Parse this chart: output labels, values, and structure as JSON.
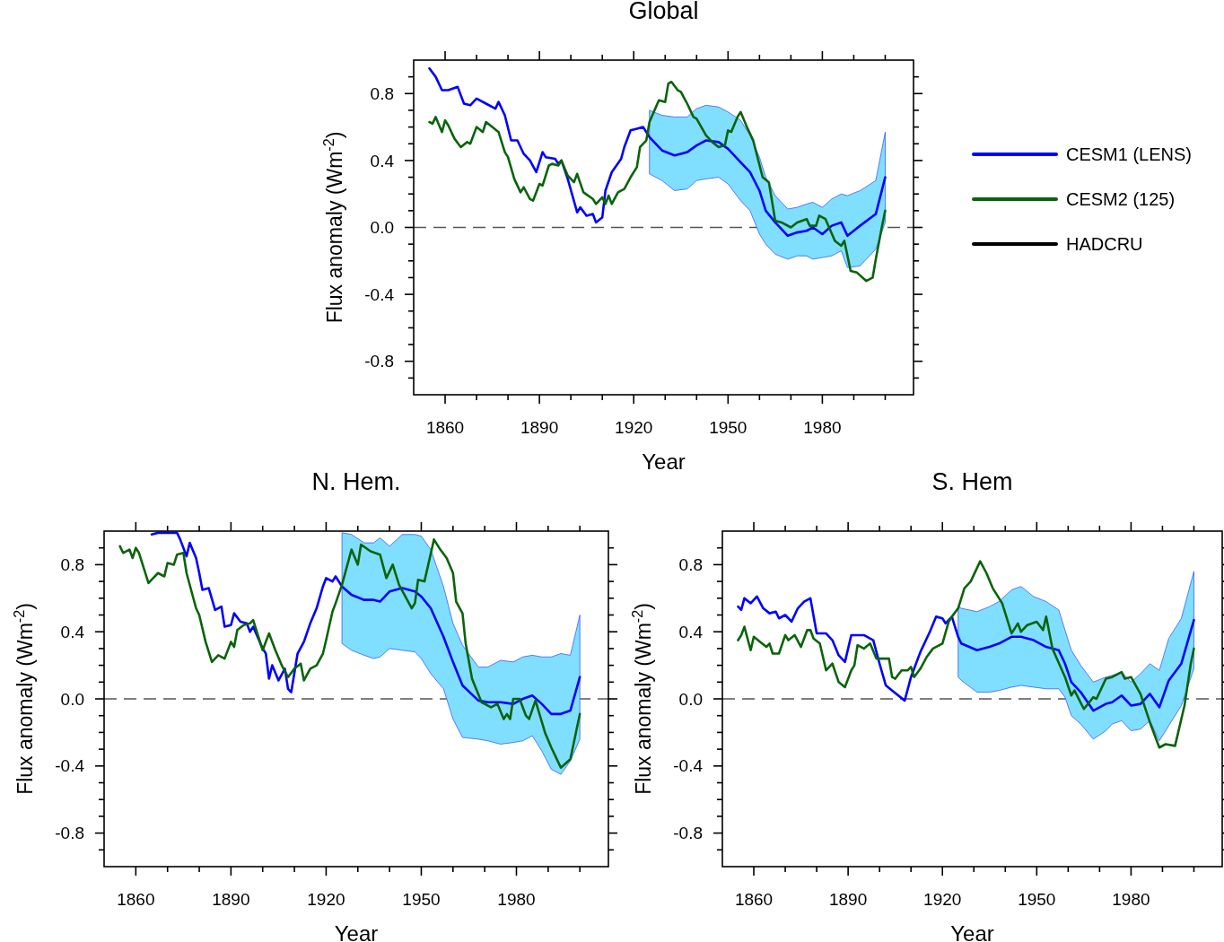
{
  "chart_data": [
    {
      "type": "line",
      "title": "Global",
      "xlabel": "Year",
      "ylabel": "Flux anomaly (Wm$^{-2}$)",
      "xlim": [
        1850,
        2009
      ],
      "ylim": [
        -1,
        1
      ],
      "xticks": [
        1860,
        {
          "value": 1870,
          "label": null
        },
        {
          "value": 1880,
          "label": null
        },
        1890,
        {
          "value": 1900,
          "label": null
        },
        {
          "value": 1910,
          "label": null
        },
        1920,
        {
          "value": 1930,
          "label": null
        },
        {
          "value": 1940,
          "label": null
        },
        1950,
        {
          "value": 1960,
          "label": null
        },
        {
          "value": 1970,
          "label": null
        },
        1980,
        {
          "value": 1990,
          "label": null
        },
        {
          "value": 2000,
          "label": null
        }
      ],
      "yticks": [
        -0.8,
        {
          "value": -0.9,
          "label": null
        },
        {
          "value": -0.7,
          "label": null
        },
        {
          "value": -0.6,
          "label": null
        },
        {
          "value": -0.5,
          "label": null
        },
        -0.4,
        {
          "value": -0.3,
          "label": null
        },
        {
          "value": -0.2,
          "label": null
        },
        {
          "value": -0.1,
          "label": null
        },
        {
          "value": 0,
          "label": "0.0"
        },
        {
          "value": 0.1,
          "label": null
        },
        {
          "value": 0.2,
          "label": null
        },
        {
          "value": 0.3,
          "label": null
        },
        0.4,
        {
          "value": 0.5,
          "label": null
        },
        {
          "value": 0.6,
          "label": null
        },
        {
          "value": 0.7,
          "label": null
        },
        0.8,
        {
          "value": 0.9,
          "label": null
        }
      ],
      "legend": "right",
      "ref_lines": [
        {
          "axis": "y",
          "value": 0,
          "color": "#555555",
          "line_style": "dashed"
        }
      ],
      "series": [
        {
          "name": "CESM1 (LENS)",
          "color": "#0000ff",
          "x": [
            1855,
            1857,
            1859,
            1861,
            1864,
            1866,
            1868,
            1870,
            1873,
            1876,
            1877,
            1879,
            1881,
            1883,
            1885,
            1887,
            1889,
            1891,
            1892,
            1895,
            1896,
            1897,
            1899,
            1902,
            1903,
            1905,
            1907,
            1908,
            1910,
            1911,
            1913,
            1916,
            1917,
            1919,
            1921,
            1923,
            1925,
            1929,
            1933,
            1937,
            1940,
            1943,
            1947,
            1950,
            1954,
            1957,
            1960,
            1962,
            1965,
            1969,
            1972,
            1975,
            1977,
            1980,
            1983,
            1986,
            1988,
            1992,
            1997,
            2000
          ],
          "values": [
            0.95,
            0.9,
            0.82,
            0.82,
            0.84,
            0.74,
            0.73,
            0.77,
            0.74,
            0.71,
            0.75,
            0.67,
            0.52,
            0.52,
            0.44,
            0.4,
            0.33,
            0.45,
            0.42,
            0.41,
            0.38,
            0.4,
            0.29,
            0.09,
            0.12,
            0.07,
            0.08,
            0.03,
            0.06,
            0.22,
            0.33,
            0.41,
            0.48,
            0.58,
            0.59,
            0.6,
            0.54,
            0.46,
            0.43,
            0.45,
            0.49,
            0.52,
            0.51,
            0.47,
            0.39,
            0.33,
            0.22,
            0.1,
            0.03,
            -0.05,
            -0.03,
            -0.02,
            0.0,
            -0.04,
            0.01,
            0.03,
            -0.05,
            0.01,
            0.08,
            0.3
          ],
          "upper": [
            null,
            null,
            null,
            null,
            null,
            null,
            null,
            null,
            null,
            null,
            null,
            null,
            null,
            null,
            null,
            null,
            null,
            null,
            null,
            null,
            null,
            null,
            null,
            null,
            null,
            null,
            null,
            null,
            null,
            null,
            null,
            null,
            null,
            null,
            null,
            null,
            0.7,
            0.67,
            0.66,
            0.66,
            0.71,
            0.73,
            0.72,
            0.69,
            0.64,
            0.55,
            0.42,
            0.3,
            0.19,
            0.11,
            0.12,
            0.14,
            0.15,
            0.12,
            0.17,
            0.2,
            0.19,
            0.22,
            0.28,
            0.57
          ],
          "lower": [
            null,
            null,
            null,
            null,
            null,
            null,
            null,
            null,
            null,
            null,
            null,
            null,
            null,
            null,
            null,
            null,
            null,
            null,
            null,
            null,
            null,
            null,
            null,
            null,
            null,
            null,
            null,
            null,
            null,
            null,
            null,
            null,
            null,
            null,
            null,
            null,
            0.32,
            0.28,
            0.22,
            0.23,
            0.28,
            0.29,
            0.3,
            0.26,
            0.16,
            0.1,
            -0.04,
            -0.1,
            -0.16,
            -0.19,
            -0.17,
            -0.17,
            -0.19,
            -0.18,
            -0.17,
            -0.14,
            -0.24,
            -0.23,
            -0.13,
            0.03
          ]
        },
        {
          "name": "CESM2 (125)",
          "color": "#0a640a",
          "x": [
            1855,
            1856,
            1857,
            1859,
            1860,
            1861,
            1863,
            1865,
            1867,
            1868,
            1870,
            1872,
            1873,
            1875,
            1877,
            1879,
            1880,
            1882,
            1884,
            1885,
            1887,
            1888,
            1890,
            1891,
            1893,
            1894,
            1896,
            1897,
            1899,
            1901,
            1902,
            1904,
            1907,
            1908,
            1910,
            1911,
            1912,
            1913,
            1915,
            1917,
            1919,
            1921,
            1922,
            1924,
            1925,
            1928,
            1930,
            1931,
            1932,
            1934,
            1935,
            1937,
            1939,
            1940,
            1943,
            1945,
            1947,
            1949,
            1950,
            1951,
            1953,
            1954,
            1956,
            1958,
            1961,
            1963,
            1965,
            1967,
            1970,
            1972,
            1975,
            1976,
            1978,
            1979,
            1981,
            1984,
            1986,
            1987,
            1989,
            1991,
            1994,
            1996,
            1997,
            1999,
            2000
          ],
          "values": [
            0.63,
            0.62,
            0.66,
            0.57,
            0.64,
            0.61,
            0.53,
            0.48,
            0.51,
            0.5,
            0.6,
            0.57,
            0.63,
            0.6,
            0.57,
            0.45,
            0.42,
            0.29,
            0.21,
            0.24,
            0.17,
            0.16,
            0.26,
            0.25,
            0.37,
            0.38,
            0.37,
            0.4,
            0.31,
            0.27,
            0.32,
            0.21,
            0.17,
            0.14,
            0.18,
            0.14,
            0.19,
            0.14,
            0.21,
            0.23,
            0.3,
            0.36,
            0.48,
            0.52,
            0.63,
            0.76,
            0.75,
            0.86,
            0.87,
            0.82,
            0.81,
            0.74,
            0.66,
            0.65,
            0.55,
            0.51,
            0.48,
            0.49,
            0.58,
            0.57,
            0.66,
            0.69,
            0.6,
            0.52,
            0.3,
            0.27,
            0.04,
            0.03,
            0.0,
            0.03,
            0.05,
            0.01,
            0.01,
            0.07,
            0.05,
            -0.08,
            -0.11,
            -0.08,
            -0.26,
            -0.27,
            -0.32,
            -0.3,
            -0.19,
            0.01,
            0.1
          ]
        },
        {
          "name": "HADCRU",
          "color": "#000000"
        }
      ]
    },
    {
      "type": "line",
      "title": "N. Hem.",
      "xlabel": "Year",
      "ylabel": "Flux anomaly (Wm$^{-2}$)",
      "xlim": [
        1850,
        2009
      ],
      "ylim": [
        -1,
        1
      ],
      "xticks": [
        1860,
        {
          "value": 1870,
          "label": null
        },
        {
          "value": 1880,
          "label": null
        },
        1890,
        {
          "value": 1900,
          "label": null
        },
        {
          "value": 1910,
          "label": null
        },
        1920,
        {
          "value": 1930,
          "label": null
        },
        {
          "value": 1940,
          "label": null
        },
        1950,
        {
          "value": 1960,
          "label": null
        },
        {
          "value": 1970,
          "label": null
        },
        1980,
        {
          "value": 1990,
          "label": null
        },
        {
          "value": 2000,
          "label": null
        }
      ],
      "yticks": [
        -0.8,
        {
          "value": -0.9,
          "label": null
        },
        {
          "value": -0.7,
          "label": null
        },
        {
          "value": -0.6,
          "label": null
        },
        {
          "value": -0.5,
          "label": null
        },
        -0.4,
        {
          "value": -0.3,
          "label": null
        },
        {
          "value": -0.2,
          "label": null
        },
        {
          "value": -0.1,
          "label": null
        },
        {
          "value": 0,
          "label": "0.0"
        },
        {
          "value": 0.1,
          "label": null
        },
        {
          "value": 0.2,
          "label": null
        },
        {
          "value": 0.3,
          "label": null
        },
        0.4,
        {
          "value": 0.5,
          "label": null
        },
        {
          "value": 0.6,
          "label": null
        },
        {
          "value": 0.7,
          "label": null
        },
        0.8,
        {
          "value": 0.9,
          "label": null
        }
      ],
      "ref_lines": [
        {
          "axis": "y",
          "value": 0,
          "color": "#555555",
          "line_style": "dashed"
        }
      ],
      "series": [
        {
          "color": "#0000ff",
          "x": [
            1865,
            1867,
            1873,
            1874,
            1876,
            1877,
            1879,
            1880,
            1881,
            1883,
            1885,
            1887,
            1888,
            1890,
            1891,
            1893,
            1895,
            1896,
            1897,
            1900,
            1901,
            1902,
            1903,
            1905,
            1907,
            1908,
            1909,
            1911,
            1913,
            1915,
            1917,
            1919,
            1920,
            1922,
            1923,
            1925,
            1928,
            1932,
            1935,
            1937,
            1940,
            1944,
            1948,
            1950,
            1953,
            1957,
            1960,
            1963,
            1968,
            1971,
            1975,
            1979,
            1982,
            1985,
            1988,
            1991,
            1994,
            1997,
            2000
          ],
          "values": [
            0.98,
            0.99,
            0.99,
            0.95,
            0.85,
            0.93,
            0.84,
            0.75,
            0.65,
            0.66,
            0.53,
            0.55,
            0.43,
            0.44,
            0.51,
            0.46,
            0.45,
            0.4,
            0.43,
            0.3,
            0.27,
            0.12,
            0.2,
            0.11,
            0.18,
            0.06,
            0.04,
            0.27,
            0.34,
            0.45,
            0.54,
            0.67,
            0.72,
            0.7,
            0.73,
            0.67,
            0.62,
            0.59,
            0.59,
            0.58,
            0.64,
            0.66,
            0.64,
            0.61,
            0.54,
            0.37,
            0.22,
            0.08,
            -0.01,
            -0.02,
            -0.02,
            -0.03,
            0.0,
            0.02,
            -0.03,
            -0.09,
            -0.09,
            -0.07,
            0.13
          ],
          "upper": [
            null,
            null,
            null,
            null,
            null,
            null,
            null,
            null,
            null,
            null,
            null,
            null,
            null,
            null,
            null,
            null,
            null,
            null,
            null,
            null,
            null,
            null,
            null,
            null,
            null,
            null,
            null,
            null,
            null,
            null,
            null,
            null,
            null,
            null,
            null,
            0.99,
            0.98,
            0.93,
            0.93,
            0.96,
            0.91,
            0.98,
            0.98,
            0.97,
            0.89,
            0.67,
            0.45,
            0.32,
            0.19,
            0.19,
            0.23,
            0.22,
            0.25,
            0.26,
            0.25,
            0.25,
            0.27,
            0.26,
            0.5
          ],
          "lower": [
            null,
            null,
            null,
            null,
            null,
            null,
            null,
            null,
            null,
            null,
            null,
            null,
            null,
            null,
            null,
            null,
            null,
            null,
            null,
            null,
            null,
            null,
            null,
            null,
            null,
            null,
            null,
            null,
            null,
            null,
            null,
            null,
            null,
            null,
            null,
            0.33,
            0.29,
            0.26,
            0.24,
            0.25,
            0.3,
            0.29,
            0.28,
            0.24,
            0.15,
            0.06,
            -0.12,
            -0.23,
            -0.24,
            -0.25,
            -0.27,
            -0.26,
            -0.25,
            -0.22,
            -0.31,
            -0.42,
            -0.45,
            -0.37,
            -0.24
          ]
        },
        {
          "color": "#0a640a",
          "x": [
            1855,
            1856,
            1858,
            1859,
            1860,
            1861,
            1864,
            1865,
            1867,
            1869,
            1870,
            1872,
            1873,
            1875,
            1876,
            1879,
            1880,
            1882,
            1884,
            1886,
            1888,
            1890,
            1891,
            1892,
            1894,
            1896,
            1897,
            1900,
            1902,
            1904,
            1906,
            1908,
            1910,
            1912,
            1913,
            1915,
            1917,
            1919,
            1920,
            1922,
            1923,
            1925,
            1928,
            1930,
            1931,
            1934,
            1937,
            1939,
            1941,
            1943,
            1947,
            1948,
            1949,
            1951,
            1954,
            1956,
            1958,
            1960,
            1961,
            1963,
            1964,
            1966,
            1969,
            1972,
            1974,
            1976,
            1977,
            1978,
            1979,
            1981,
            1983,
            1984,
            1986,
            1989,
            1991,
            1994,
            1997,
            2000
          ],
          "values": [
            0.91,
            0.87,
            0.89,
            0.84,
            0.9,
            0.87,
            0.69,
            0.71,
            0.75,
            0.73,
            0.81,
            0.8,
            0.86,
            0.87,
            0.75,
            0.54,
            0.5,
            0.34,
            0.22,
            0.26,
            0.24,
            0.34,
            0.31,
            0.41,
            0.44,
            0.45,
            0.47,
            0.29,
            0.39,
            0.29,
            0.2,
            0.13,
            0.18,
            0.21,
            0.11,
            0.18,
            0.2,
            0.27,
            0.35,
            0.52,
            0.57,
            0.68,
            0.89,
            0.8,
            0.92,
            0.88,
            0.86,
            0.72,
            0.8,
            0.68,
            0.54,
            0.57,
            0.71,
            0.7,
            0.95,
            0.89,
            0.84,
            0.75,
            0.58,
            0.51,
            0.33,
            0.12,
            -0.02,
            -0.05,
            -0.03,
            -0.12,
            -0.09,
            -0.12,
            0.0,
            0.0,
            -0.1,
            -0.12,
            -0.01,
            -0.2,
            -0.29,
            -0.41,
            -0.36,
            -0.09
          ]
        }
      ]
    },
    {
      "type": "line",
      "title": "S. Hem",
      "xlabel": "Year",
      "ylabel": "Flux anomaly (Wm$^{-2}$)",
      "xlim": [
        1850,
        2009
      ],
      "ylim": [
        -1,
        1
      ],
      "xticks": [
        1860,
        {
          "value": 1870,
          "label": null
        },
        {
          "value": 1880,
          "label": null
        },
        1890,
        {
          "value": 1900,
          "label": null
        },
        {
          "value": 1910,
          "label": null
        },
        1920,
        {
          "value": 1930,
          "label": null
        },
        {
          "value": 1940,
          "label": null
        },
        1950,
        {
          "value": 1960,
          "label": null
        },
        {
          "value": 1970,
          "label": null
        },
        1980,
        {
          "value": 1990,
          "label": null
        },
        {
          "value": 2000,
          "label": null
        }
      ],
      "yticks": [
        -0.8,
        {
          "value": -0.9,
          "label": null
        },
        {
          "value": -0.7,
          "label": null
        },
        {
          "value": -0.6,
          "label": null
        },
        {
          "value": -0.5,
          "label": null
        },
        -0.4,
        {
          "value": -0.3,
          "label": null
        },
        {
          "value": -0.2,
          "label": null
        },
        {
          "value": -0.1,
          "label": null
        },
        {
          "value": 0,
          "label": "0.0"
        },
        {
          "value": 0.1,
          "label": null
        },
        {
          "value": 0.2,
          "label": null
        },
        {
          "value": 0.3,
          "label": null
        },
        0.4,
        {
          "value": 0.5,
          "label": null
        },
        {
          "value": 0.6,
          "label": null
        },
        {
          "value": 0.7,
          "label": null
        },
        0.8,
        {
          "value": 0.9,
          "label": null
        }
      ],
      "ref_lines": [
        {
          "axis": "y",
          "value": 0,
          "color": "#555555",
          "line_style": "dashed"
        }
      ],
      "series": [
        {
          "color": "#0000ff",
          "x": [
            1855,
            1856,
            1857,
            1859,
            1861,
            1863,
            1865,
            1867,
            1868,
            1870,
            1872,
            1874,
            1876,
            1878,
            1880,
            1883,
            1885,
            1887,
            1889,
            1891,
            1895,
            1898,
            1900,
            1902,
            1904,
            1908,
            1910,
            1913,
            1916,
            1918,
            1920,
            1921,
            1923,
            1925,
            1926,
            1931,
            1935,
            1938,
            1942,
            1945,
            1949,
            1953,
            1957,
            1959,
            1961,
            1964,
            1968,
            1972,
            1974,
            1977,
            1980,
            1983,
            1986,
            1989,
            1992,
            1996,
            2000
          ],
          "values": [
            0.55,
            0.53,
            0.6,
            0.57,
            0.61,
            0.54,
            0.51,
            0.52,
            0.48,
            0.5,
            0.46,
            0.54,
            0.58,
            0.6,
            0.39,
            0.39,
            0.35,
            0.26,
            0.22,
            0.38,
            0.38,
            0.35,
            0.21,
            0.08,
            0.05,
            -0.01,
            0.13,
            0.28,
            0.4,
            0.49,
            0.48,
            0.45,
            0.49,
            0.37,
            0.33,
            0.29,
            0.31,
            0.33,
            0.37,
            0.37,
            0.35,
            0.31,
            0.29,
            0.21,
            0.1,
            0.04,
            -0.07,
            -0.03,
            -0.02,
            0.02,
            -0.04,
            -0.03,
            0.03,
            -0.05,
            0.11,
            0.21,
            0.47
          ],
          "upper": [
            null,
            null,
            null,
            null,
            null,
            null,
            null,
            null,
            null,
            null,
            null,
            null,
            null,
            null,
            null,
            null,
            null,
            null,
            null,
            null,
            null,
            null,
            null,
            null,
            null,
            null,
            null,
            null,
            null,
            null,
            null,
            null,
            null,
            0.55,
            0.54,
            0.52,
            0.55,
            0.58,
            0.65,
            0.67,
            0.61,
            0.58,
            0.53,
            0.41,
            0.29,
            0.2,
            0.1,
            0.13,
            0.14,
            0.16,
            0.1,
            0.15,
            0.21,
            0.17,
            0.36,
            0.48,
            0.76
          ],
          "lower": [
            null,
            null,
            null,
            null,
            null,
            null,
            null,
            null,
            null,
            null,
            null,
            null,
            null,
            null,
            null,
            null,
            null,
            null,
            null,
            null,
            null,
            null,
            null,
            null,
            null,
            null,
            null,
            null,
            null,
            null,
            null,
            null,
            null,
            0.13,
            0.11,
            0.04,
            0.04,
            0.05,
            0.07,
            0.08,
            0.07,
            0.06,
            0.06,
            0.01,
            -0.1,
            -0.15,
            -0.24,
            -0.19,
            -0.15,
            -0.13,
            -0.19,
            -0.18,
            -0.13,
            -0.25,
            -0.16,
            -0.04,
            0.18
          ]
        },
        {
          "color": "#0a640a",
          "x": [
            1855,
            1856,
            1857,
            1859,
            1860,
            1862,
            1864,
            1865,
            1866,
            1868,
            1870,
            1871,
            1873,
            1875,
            1877,
            1878,
            1879,
            1881,
            1883,
            1885,
            1887,
            1889,
            1891,
            1892,
            1893,
            1895,
            1897,
            1899,
            1903,
            1904,
            1905,
            1907,
            1909,
            1910,
            1911,
            1913,
            1915,
            1917,
            1920,
            1922,
            1923,
            1925,
            1927,
            1929,
            1931,
            1932,
            1934,
            1936,
            1939,
            1942,
            1944,
            1945,
            1947,
            1950,
            1952,
            1953,
            1955,
            1959,
            1961,
            1962,
            1965,
            1968,
            1969,
            1972,
            1974,
            1977,
            1978,
            1980,
            1983,
            1986,
            1989,
            1991,
            1994,
            1995,
            1997,
            1999,
            2000
          ],
          "values": [
            0.35,
            0.38,
            0.43,
            0.29,
            0.37,
            0.34,
            0.31,
            0.33,
            0.27,
            0.27,
            0.38,
            0.35,
            0.38,
            0.31,
            0.41,
            0.41,
            0.36,
            0.33,
            0.17,
            0.21,
            0.1,
            0.07,
            0.17,
            0.2,
            0.32,
            0.3,
            0.33,
            0.24,
            0.24,
            0.13,
            0.12,
            0.17,
            0.17,
            0.19,
            0.13,
            0.18,
            0.25,
            0.3,
            0.33,
            0.46,
            0.49,
            0.54,
            0.66,
            0.7,
            0.78,
            0.82,
            0.75,
            0.66,
            0.57,
            0.39,
            0.45,
            0.4,
            0.44,
            0.46,
            0.41,
            0.49,
            0.3,
            0.13,
            0.02,
            0.05,
            -0.06,
            0.01,
            0.0,
            0.12,
            0.13,
            0.16,
            0.12,
            0.13,
            0.03,
            -0.14,
            -0.29,
            -0.27,
            -0.28,
            -0.2,
            -0.04,
            0.21,
            0.3
          ]
        }
      ]
    }
  ]
}
